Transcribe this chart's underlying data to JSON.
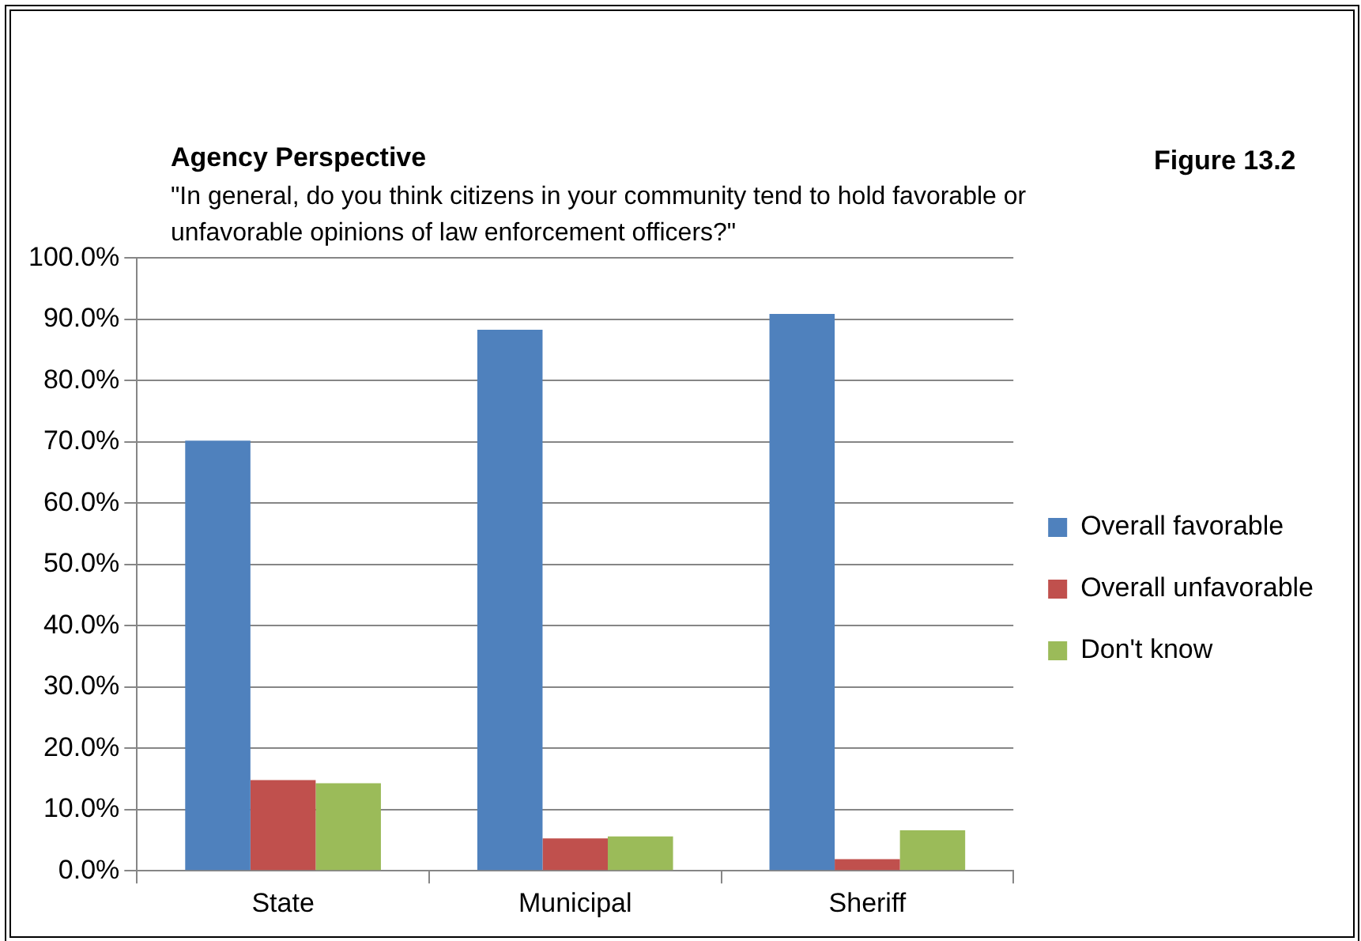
{
  "chart_data": {
    "type": "bar",
    "title": "Agency Perspective",
    "subtitle": "\"In general, do you think citizens in your community tend to hold favorable or unfavorable  opinions of law enforcement officers?\"",
    "annotations": [
      "Figure 13.2"
    ],
    "categories": [
      "State",
      "Municipal",
      "Sheriff"
    ],
    "series": [
      {
        "name": "Overall favorable",
        "color": "#4f81bd",
        "values": [
          70.2,
          88.3,
          90.9
        ]
      },
      {
        "name": "Overall unfavorable",
        "color": "#c0504d",
        "values": [
          14.8,
          5.3,
          1.9
        ]
      },
      {
        "name": "Don't know",
        "color": "#9bbb59",
        "values": [
          14.3,
          5.6,
          6.6
        ]
      }
    ],
    "ylim": [
      0,
      100
    ],
    "yticks": [
      {
        "value": 0,
        "label": "0.0%"
      },
      {
        "value": 10,
        "label": "10.0%"
      },
      {
        "value": 20,
        "label": "20.0%"
      },
      {
        "value": 30,
        "label": "30.0%"
      },
      {
        "value": 40,
        "label": "40.0%"
      },
      {
        "value": 50,
        "label": "50.0%"
      },
      {
        "value": 60,
        "label": "60.0%"
      },
      {
        "value": 70,
        "label": "70.0%"
      },
      {
        "value": 80,
        "label": "80.0%"
      },
      {
        "value": 90,
        "label": "90.0%"
      },
      {
        "value": 100,
        "label": "100.0%"
      }
    ],
    "grid": "y",
    "legend": "right"
  }
}
